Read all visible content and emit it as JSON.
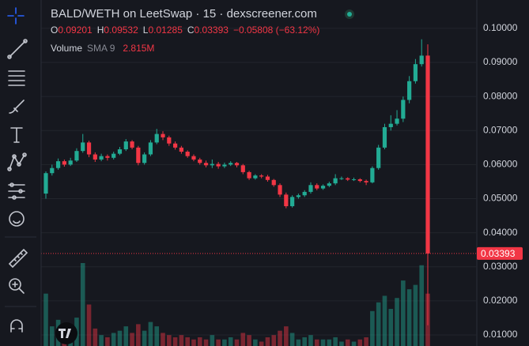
{
  "chart_data": {
    "type": "candlestick",
    "title": "BALD/WETH on LeetSwap · 15 · dexscreener.com",
    "legend": {
      "o_label": "O",
      "o": "0.09201",
      "h_label": "H",
      "h": "0.09532",
      "l_label": "L",
      "l": "0.01285",
      "c_label": "C",
      "c": "0.03393",
      "change": "−0.05808 (−63.12%)"
    },
    "volume_legend": {
      "name": "Volume",
      "indicator": "SMA 9",
      "value": "2.815M"
    },
    "open": [
      0.0515,
      0.0575,
      0.059,
      0.061,
      0.06,
      0.0612,
      0.064,
      0.0665,
      0.063,
      0.0615,
      0.0625,
      0.062,
      0.0632,
      0.0645,
      0.0668,
      0.065,
      0.0605,
      0.063,
      0.0665,
      0.069,
      0.068,
      0.0662,
      0.065,
      0.0638,
      0.0625,
      0.0615,
      0.0605,
      0.0598,
      0.0602,
      0.0595,
      0.06,
      0.0605,
      0.0598,
      0.0578,
      0.056,
      0.0568,
      0.0565,
      0.0555,
      0.054,
      0.0512,
      0.0478,
      0.0505,
      0.051,
      0.052,
      0.054,
      0.053,
      0.0538,
      0.0545,
      0.056,
      0.056,
      0.0556,
      0.0557,
      0.0552,
      0.0548,
      0.059,
      0.065,
      0.071,
      0.072,
      0.0735,
      0.079,
      0.0845,
      0.0895,
      0.09201
    ],
    "high": [
      0.058,
      0.06,
      0.0618,
      0.0615,
      0.062,
      0.0648,
      0.069,
      0.067,
      0.0636,
      0.0632,
      0.063,
      0.0638,
      0.0652,
      0.0675,
      0.0672,
      0.0655,
      0.0636,
      0.0672,
      0.0705,
      0.0698,
      0.0685,
      0.0668,
      0.0655,
      0.0642,
      0.063,
      0.062,
      0.0612,
      0.0615,
      0.0608,
      0.0606,
      0.061,
      0.0608,
      0.0602,
      0.0582,
      0.0572,
      0.0572,
      0.057,
      0.0558,
      0.0545,
      0.0518,
      0.051,
      0.0515,
      0.0525,
      0.0548,
      0.0545,
      0.0542,
      0.055,
      0.0572,
      0.0565,
      0.0563,
      0.0562,
      0.056,
      0.0556,
      0.0595,
      0.0658,
      0.072,
      0.0745,
      0.076,
      0.08,
      0.086,
      0.091,
      0.0968,
      0.09532
    ],
    "low": [
      0.05,
      0.0568,
      0.0585,
      0.0594,
      0.0596,
      0.0608,
      0.0635,
      0.0622,
      0.0608,
      0.061,
      0.0612,
      0.0615,
      0.0628,
      0.064,
      0.0645,
      0.0598,
      0.06,
      0.0625,
      0.066,
      0.0672,
      0.0655,
      0.0644,
      0.0632,
      0.062,
      0.061,
      0.06,
      0.0592,
      0.059,
      0.0588,
      0.059,
      0.0596,
      0.0592,
      0.0572,
      0.0555,
      0.0556,
      0.056,
      0.055,
      0.0535,
      0.0505,
      0.0472,
      0.0474,
      0.05,
      0.0505,
      0.0515,
      0.0525,
      0.0526,
      0.0534,
      0.054,
      0.0555,
      0.0552,
      0.0552,
      0.0548,
      0.054,
      0.0545,
      0.0585,
      0.0645,
      0.07,
      0.0715,
      0.0725,
      0.078,
      0.0838,
      0.0888,
      0.01285
    ],
    "close": [
      0.0575,
      0.059,
      0.061,
      0.06,
      0.0612,
      0.064,
      0.0665,
      0.063,
      0.0615,
      0.0625,
      0.062,
      0.0632,
      0.0645,
      0.0668,
      0.065,
      0.0605,
      0.063,
      0.0665,
      0.069,
      0.068,
      0.0662,
      0.065,
      0.0638,
      0.0625,
      0.0615,
      0.0605,
      0.0598,
      0.0602,
      0.0595,
      0.06,
      0.0605,
      0.0598,
      0.0578,
      0.056,
      0.0568,
      0.0565,
      0.0555,
      0.054,
      0.0512,
      0.0478,
      0.0505,
      0.051,
      0.052,
      0.054,
      0.053,
      0.0538,
      0.0545,
      0.056,
      0.056,
      0.0556,
      0.0557,
      0.0552,
      0.0548,
      0.059,
      0.065,
      0.071,
      0.072,
      0.0735,
      0.079,
      0.0845,
      0.0895,
      0.092,
      0.03393
    ],
    "volume": [
      2.4,
      0.9,
      1.2,
      0.6,
      0.5,
      1.3,
      3.8,
      1.9,
      0.8,
      0.5,
      0.4,
      0.6,
      0.7,
      0.9,
      0.6,
      1.0,
      0.7,
      1.1,
      0.9,
      0.6,
      0.5,
      0.4,
      0.5,
      0.4,
      0.3,
      0.4,
      0.3,
      0.5,
      0.3,
      0.3,
      0.4,
      0.3,
      0.6,
      0.5,
      0.3,
      0.2,
      0.4,
      0.5,
      0.7,
      0.9,
      0.6,
      0.3,
      0.4,
      0.5,
      0.3,
      0.3,
      0.3,
      0.4,
      0.2,
      0.3,
      0.2,
      0.3,
      0.4,
      1.6,
      2.0,
      2.3,
      1.7,
      2.2,
      3.0,
      2.6,
      2.8,
      3.7,
      2.4
    ],
    "ylim": [
      0.00676,
      0.10833
    ],
    "yticks": [
      {
        "value": 0.1,
        "label": "0.10000"
      },
      {
        "value": 0.09,
        "label": "0.09000"
      },
      {
        "value": 0.08,
        "label": "0.08000"
      },
      {
        "value": 0.07,
        "label": "0.07000"
      },
      {
        "value": 0.06,
        "label": "0.06000"
      },
      {
        "value": 0.05,
        "label": "0.05000"
      },
      {
        "value": 0.04,
        "label": "0.04000"
      },
      {
        "value": 0.03,
        "label": "0.03000"
      },
      {
        "value": 0.02,
        "label": "0.02000"
      },
      {
        "value": 0.01,
        "label": "0.01000"
      }
    ],
    "grid": true,
    "up_color": "#22ab94",
    "down_color": "#f23645"
  }
}
